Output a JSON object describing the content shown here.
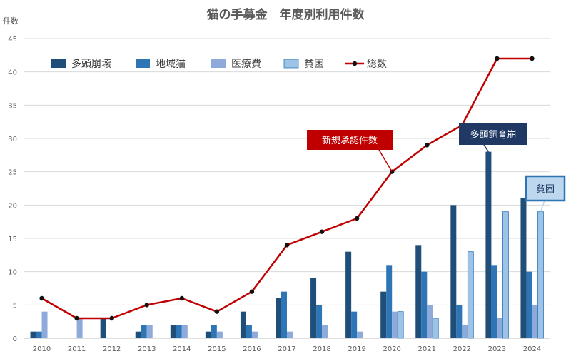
{
  "chart_data": {
    "type": "bar",
    "title": "猫の手募金　年度別利用件数",
    "ylabel": "件数",
    "xlabel": "",
    "ylim": [
      0,
      45
    ],
    "yticks": [
      0,
      5,
      10,
      15,
      20,
      25,
      30,
      35,
      40,
      45
    ],
    "grid": true,
    "legend_position": "top-left",
    "categories": [
      "2010",
      "2011",
      "2012",
      "2013",
      "2014",
      "2015",
      "2016",
      "2017",
      "2018",
      "2019",
      "2020",
      "2021",
      "2022",
      "2023",
      "2024"
    ],
    "series": [
      {
        "name": "多頭崩壊",
        "type": "bar",
        "color": "#1f4e79",
        "values": [
          1,
          0,
          3,
          1,
          2,
          1,
          4,
          6,
          9,
          13,
          7,
          14,
          20,
          28,
          21
        ]
      },
      {
        "name": "地域猫",
        "type": "bar",
        "color": "#2e75b6",
        "values": [
          1,
          0,
          0,
          2,
          2,
          2,
          2,
          7,
          5,
          4,
          11,
          10,
          5,
          11,
          10
        ]
      },
      {
        "name": "医療費",
        "type": "bar",
        "color": "#8eaadb",
        "values": [
          4,
          3,
          0,
          2,
          2,
          1,
          1,
          1,
          2,
          1,
          4,
          5,
          2,
          3,
          5
        ]
      },
      {
        "name": "貧困",
        "type": "bar",
        "color": "#9dc3e6",
        "values": [
          0,
          0,
          0,
          0,
          0,
          0,
          0,
          0,
          0,
          0,
          4,
          3,
          13,
          19,
          19
        ]
      },
      {
        "name": "総数",
        "type": "line",
        "color": "#c00000",
        "values": [
          6,
          3,
          3,
          5,
          6,
          4,
          7,
          14,
          16,
          18,
          25,
          29,
          32,
          42,
          42
        ]
      }
    ],
    "annotations": [
      {
        "text": "新規承認件数",
        "target_series": "総数",
        "target_category": "2020",
        "bg": "#c00000",
        "fg": "#ffffff"
      },
      {
        "text": "多頭飼育崩",
        "target_series": "多頭崩壊",
        "target_category": "2023",
        "bg": "#1f3864",
        "fg": "#ffffff"
      },
      {
        "text": "貧困",
        "target_series": "貧困",
        "target_category": "2024",
        "bg": "#bdd7ee",
        "fg": "#1f3864"
      }
    ]
  }
}
